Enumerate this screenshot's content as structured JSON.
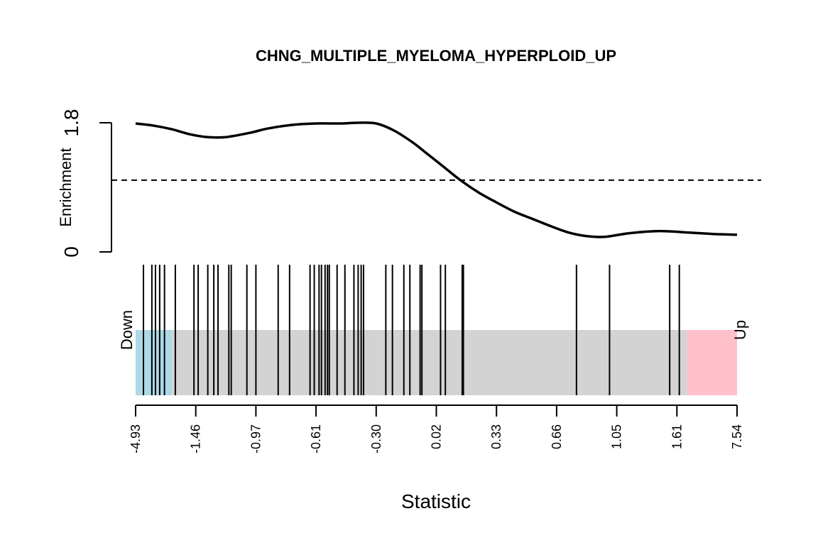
{
  "chart_data": {
    "type": "barcode",
    "title": "CHNG_MULTIPLE_MYELOMA_HYPERPLOID_UP",
    "xlabel": "Statistic",
    "ylabel": "Enrichment",
    "y_ticks": [
      "0",
      "1.8"
    ],
    "ylim": [
      0,
      1.8
    ],
    "down_label": "Down",
    "up_label": "Up",
    "rank_range": [
      0,
      1
    ],
    "down_region_end": 0.06,
    "up_region_start": 0.917,
    "region_colors": {
      "down": "#add8e6",
      "middle": "#d3d3d3",
      "up": "#ffc0cb"
    },
    "reference_line": 1.0,
    "x_ticks": [
      {
        "pos": 0.0,
        "label": "-4.93"
      },
      {
        "pos": 0.1,
        "label": "-1.46"
      },
      {
        "pos": 0.2,
        "label": "-0.97"
      },
      {
        "pos": 0.3,
        "label": "-0.61"
      },
      {
        "pos": 0.4,
        "label": "-0.30"
      },
      {
        "pos": 0.5,
        "label": "0.02"
      },
      {
        "pos": 0.6,
        "label": "0.33"
      },
      {
        "pos": 0.7,
        "label": "0.66"
      },
      {
        "pos": 0.8,
        "label": "1.05"
      },
      {
        "pos": 0.9,
        "label": "1.61"
      },
      {
        "pos": 1.0,
        "label": "7.54"
      }
    ],
    "barcode_positions": [
      0.013,
      0.027,
      0.033,
      0.04,
      0.048,
      0.066,
      0.097,
      0.104,
      0.12,
      0.13,
      0.137,
      0.155,
      0.159,
      0.185,
      0.2,
      0.237,
      0.256,
      0.29,
      0.297,
      0.305,
      0.309,
      0.315,
      0.319,
      0.322,
      0.335,
      0.348,
      0.363,
      0.37,
      0.375,
      0.379,
      0.416,
      0.427,
      0.446,
      0.456,
      0.473,
      0.476,
      0.507,
      0.515,
      0.543,
      0.545,
      0.733,
      0.788,
      0.888,
      0.904
    ],
    "enrichment_curve": {
      "x": [
        0.0,
        0.03,
        0.06,
        0.09,
        0.12,
        0.15,
        0.19,
        0.22,
        0.26,
        0.3,
        0.34,
        0.37,
        0.4,
        0.43,
        0.46,
        0.48,
        0.51,
        0.54,
        0.57,
        0.6,
        0.63,
        0.66,
        0.69,
        0.72,
        0.75,
        0.78,
        0.82,
        0.87,
        0.92,
        0.96,
        1.0
      ],
      "y": [
        1.79,
        1.76,
        1.71,
        1.64,
        1.6,
        1.6,
        1.66,
        1.72,
        1.77,
        1.79,
        1.79,
        1.8,
        1.79,
        1.69,
        1.53,
        1.4,
        1.2,
        1.0,
        0.83,
        0.69,
        0.56,
        0.46,
        0.36,
        0.27,
        0.22,
        0.21,
        0.26,
        0.29,
        0.27,
        0.25,
        0.24
      ]
    }
  }
}
